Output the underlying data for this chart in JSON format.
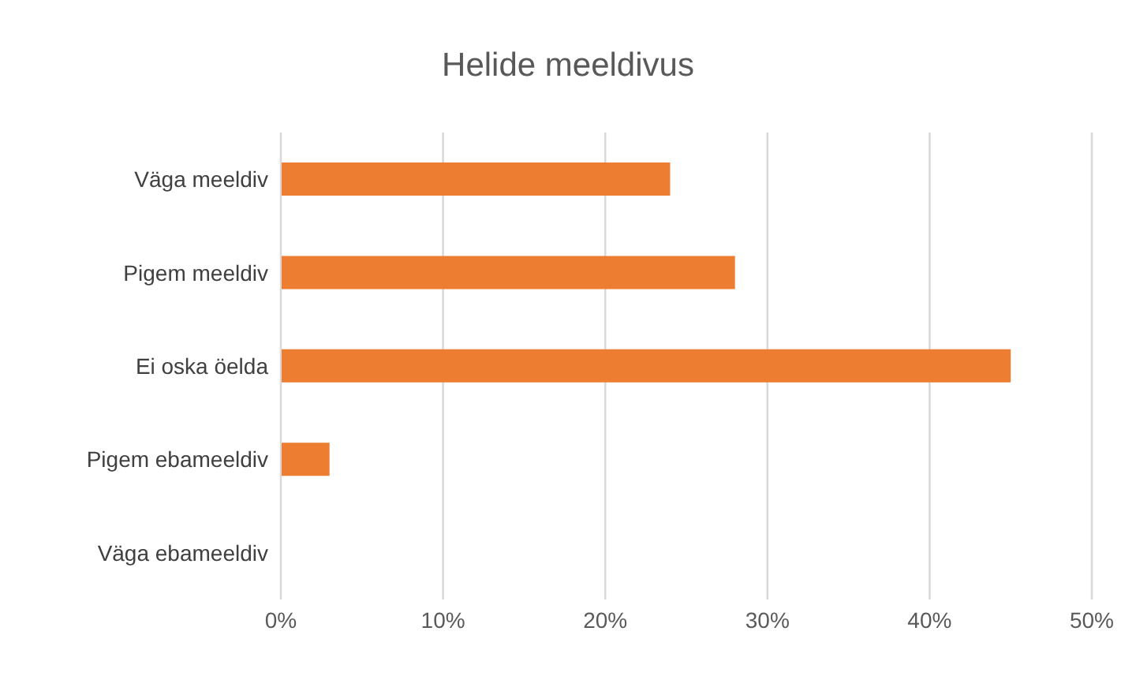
{
  "chart_data": {
    "type": "bar",
    "orientation": "horizontal",
    "title": "Helide meeldivus",
    "categories": [
      "Väga meeldiv",
      "Pigem meeldiv",
      "Ei oska öelda",
      "Pigem ebameeldiv",
      "Väga ebameeldiv"
    ],
    "values": [
      24,
      28,
      45,
      3,
      0
    ],
    "color": "#ed7d31",
    "xlim": [
      0,
      50
    ],
    "xticks": [
      {
        "value": 0,
        "label": "0%"
      },
      {
        "value": 10,
        "label": "10%"
      },
      {
        "value": 20,
        "label": "20%"
      },
      {
        "value": 30,
        "label": "30%"
      },
      {
        "value": 40,
        "label": "40%"
      },
      {
        "value": 50,
        "label": "50%"
      }
    ],
    "grid": "x"
  }
}
